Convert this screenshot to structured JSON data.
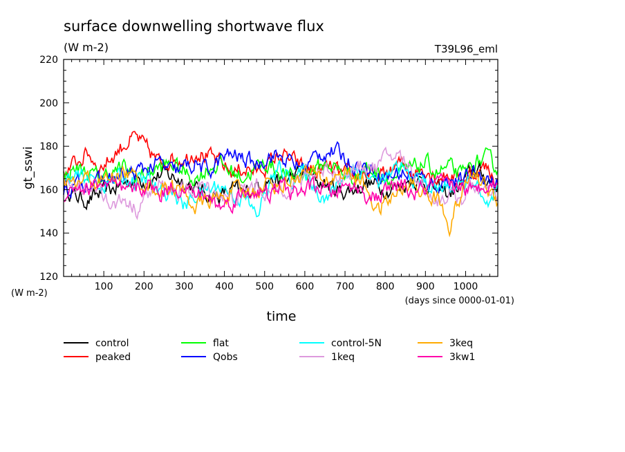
{
  "chart_data": {
    "type": "line",
    "title": "surface downwelling shortwave flux",
    "units": "(W m-2)",
    "run_label": "T39L96_eml",
    "xlabel": "time",
    "xunits": "(days since 0000-01-01)",
    "ylabel": "gt_sswi",
    "yunits": "(W m-2)",
    "xlim": [
      0,
      1080
    ],
    "ylim": [
      120,
      220
    ],
    "xticks": [
      100,
      200,
      300,
      400,
      500,
      600,
      700,
      800,
      900,
      1000
    ],
    "yticks": [
      120,
      140,
      160,
      180,
      200,
      220
    ],
    "legend_position": "bottom",
    "x": [
      0,
      30,
      60,
      90,
      120,
      150,
      180,
      210,
      240,
      270,
      300,
      330,
      360,
      390,
      420,
      450,
      480,
      510,
      540,
      570,
      600,
      630,
      660,
      690,
      720,
      750,
      780,
      810,
      840,
      870,
      900,
      930,
      960,
      990,
      1020,
      1050,
      1080
    ],
    "series": [
      {
        "name": "control",
        "color": "#000000",
        "values": [
          162,
          157,
          155,
          158,
          160,
          163,
          165,
          164,
          167,
          166,
          164,
          160,
          158,
          157,
          160,
          158,
          162,
          165,
          163,
          166,
          168,
          164,
          162,
          159,
          160,
          163,
          162,
          160,
          162,
          165,
          163,
          160,
          158,
          162,
          170,
          165,
          162
        ]
      },
      {
        "name": "peaked",
        "color": "#ff0000",
        "values": [
          168,
          172,
          177,
          170,
          175,
          181,
          184,
          178,
          172,
          175,
          174,
          178,
          175,
          172,
          168,
          170,
          168,
          172,
          176,
          173,
          170,
          168,
          170,
          167,
          166,
          168,
          165,
          168,
          172,
          168,
          170,
          166,
          167,
          165,
          168,
          170,
          164
        ]
      },
      {
        "name": "flat",
        "color": "#00ff00",
        "values": [
          166,
          170,
          168,
          165,
          168,
          170,
          166,
          168,
          170,
          172,
          168,
          165,
          170,
          172,
          168,
          166,
          170,
          172,
          168,
          165,
          168,
          170,
          172,
          168,
          166,
          170,
          168,
          165,
          167,
          170,
          172,
          168,
          170,
          166,
          172,
          174,
          170
        ]
      },
      {
        "name": "Qobs",
        "color": "#0000ff",
        "values": [
          160,
          162,
          164,
          163,
          165,
          166,
          168,
          170,
          172,
          168,
          170,
          172,
          168,
          174,
          176,
          174,
          172,
          176,
          175,
          172,
          170,
          176,
          178,
          176,
          172,
          170,
          168,
          166,
          168,
          166,
          164,
          162,
          165,
          163,
          168,
          166,
          162
        ]
      },
      {
        "name": "control-5N",
        "color": "#00ffff",
        "values": [
          163,
          165,
          166,
          162,
          164,
          166,
          163,
          165,
          158,
          160,
          152,
          158,
          160,
          162,
          158,
          156,
          148,
          162,
          170,
          165,
          168,
          160,
          156,
          165,
          170,
          168,
          163,
          166,
          170,
          165,
          163,
          160,
          162,
          160,
          165,
          150,
          158
        ]
      },
      {
        "name": "1keq",
        "color": "#dd99dd",
        "values": [
          160,
          162,
          158,
          163,
          152,
          156,
          151,
          158,
          162,
          160,
          158,
          162,
          160,
          158,
          155,
          160,
          162,
          158,
          160,
          163,
          165,
          168,
          170,
          166,
          168,
          172,
          170,
          176,
          175,
          168,
          160,
          155,
          158,
          156,
          162,
          158,
          155
        ]
      },
      {
        "name": "3keq",
        "color": "#ffaa00",
        "values": [
          164,
          162,
          165,
          163,
          166,
          168,
          165,
          162,
          160,
          162,
          158,
          152,
          155,
          156,
          160,
          158,
          160,
          163,
          162,
          165,
          168,
          166,
          164,
          168,
          166,
          162,
          150,
          155,
          160,
          162,
          158,
          156,
          144,
          158,
          168,
          162,
          154
        ]
      },
      {
        "name": "3kw1",
        "color": "#ff00aa",
        "values": [
          158,
          162,
          160,
          163,
          162,
          158,
          160,
          162,
          158,
          162,
          160,
          158,
          156,
          152,
          155,
          158,
          160,
          156,
          162,
          158,
          160,
          162,
          158,
          160,
          162,
          158,
          156,
          160,
          162,
          158,
          160,
          163,
          160,
          162,
          158,
          164,
          162
        ]
      }
    ]
  }
}
